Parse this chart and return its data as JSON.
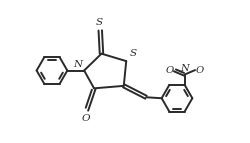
{
  "bg_color": "#ffffff",
  "line_color": "#2a2a2a",
  "line_width": 1.4,
  "fig_width": 2.5,
  "fig_height": 1.43,
  "dpi": 100,
  "xlim": [
    0,
    10
  ],
  "ylim": [
    0,
    5.72
  ]
}
